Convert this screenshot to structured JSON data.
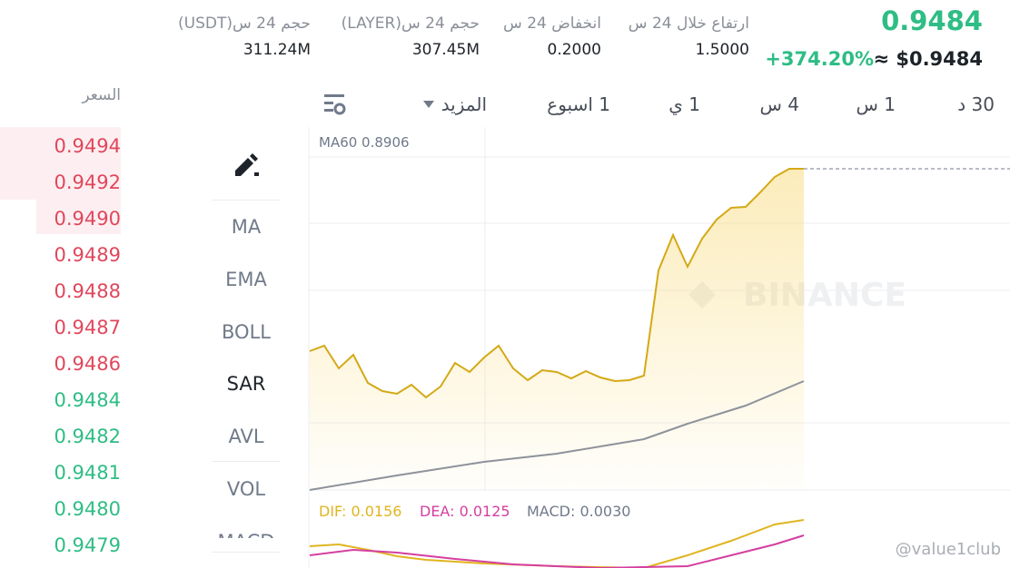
{
  "header": {
    "price": "0.9484",
    "usd": "≈ $0.9484",
    "change": "+374.20%"
  },
  "stats": [
    {
      "label": "ارتفاع خلال 24 س",
      "value": "1.5000"
    },
    {
      "label": "انخفاض 24 س",
      "value": "0.2000"
    },
    {
      "label": "حجم 24 س(LAYER)",
      "value": "307.45M"
    },
    {
      "label": "حجم 24 س(USDT)",
      "value": "311.24M"
    }
  ],
  "tabs": [
    "30 د",
    "1 س",
    "4 س",
    "1 ي",
    "1 اسبوع",
    "المزيد"
  ],
  "price_header": "السعر",
  "prices": [
    "0.9494",
    "0.9492",
    "0.9490",
    "0.9489",
    "0.9488",
    "0.9487",
    "0.9486",
    "0.9484",
    "0.9482",
    "0.9481",
    "0.9480",
    "0.9479"
  ],
  "indicators": [
    "MA",
    "EMA",
    "BOLL",
    "SAR",
    "AVL",
    "VOL",
    "MACD"
  ],
  "chart": {
    "ma60": "MA60 0.8906",
    "watermark": "BINANCE",
    "dif": "DIF: 0.0156",
    "dea": "DEA: 0.0125",
    "macd": "MACD: 0.0030"
  },
  "credit": "@value1club"
}
